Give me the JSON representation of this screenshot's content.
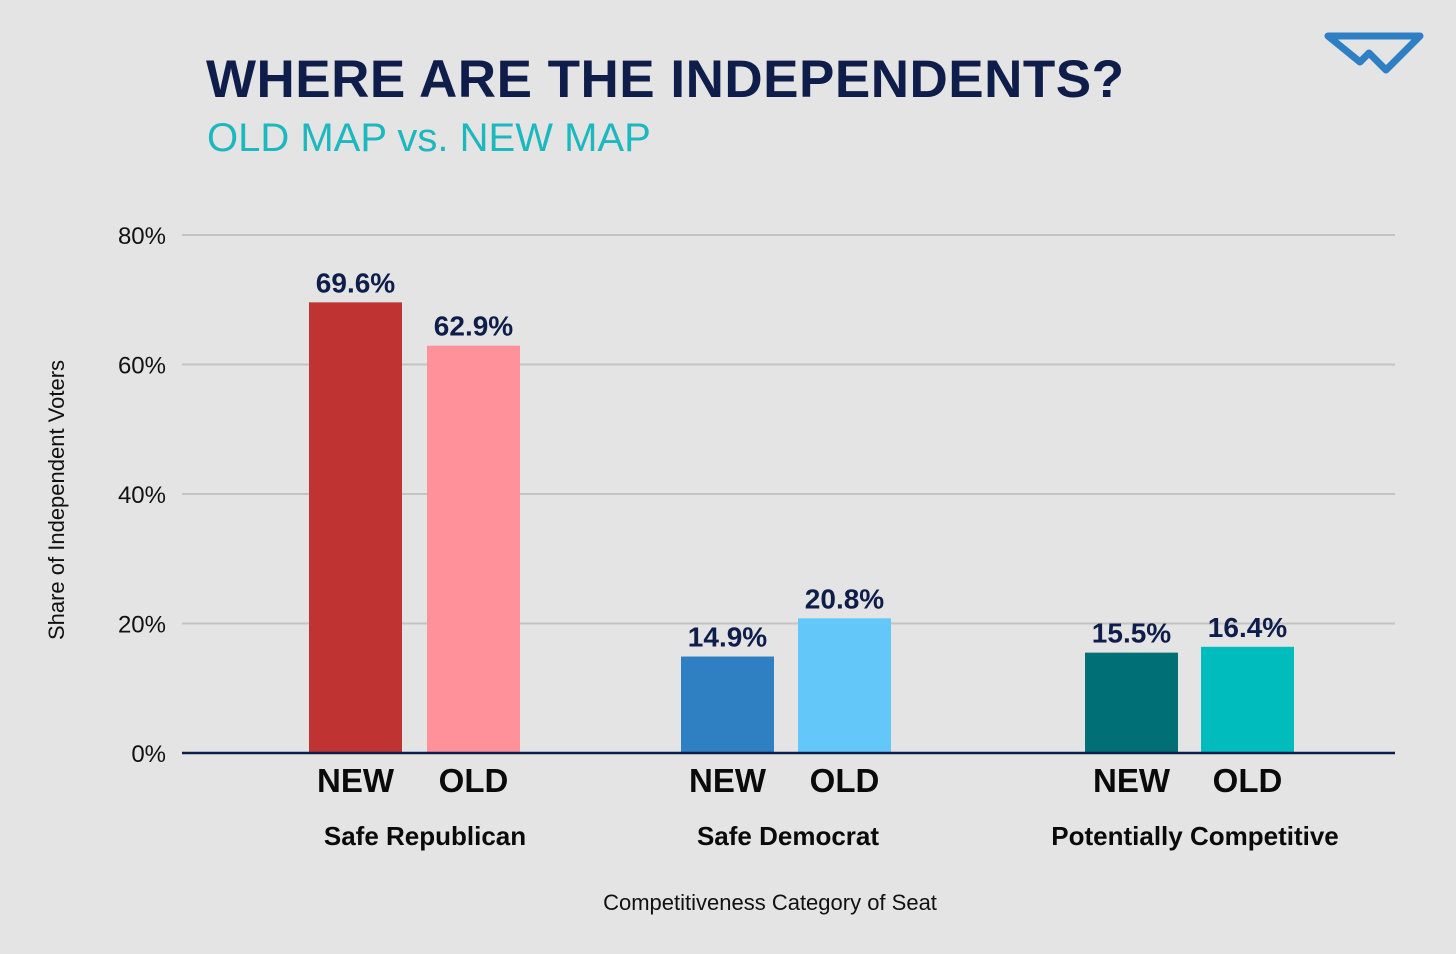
{
  "header": {
    "title": "WHERE ARE THE INDEPENDENTS?",
    "subtitle": "OLD MAP vs. NEW MAP",
    "logo": "brand-logo-icon"
  },
  "colors": {
    "background": "#e4e4e4",
    "title": "#0f1d4a",
    "subtitle": "#1cb8be",
    "gridline": "#c3c3c3",
    "baseline": "#0f1d4a",
    "logo": "#2e7fc4"
  },
  "chart_data": {
    "type": "bar",
    "title": "WHERE ARE THE INDEPENDENTS?",
    "subtitle": "OLD MAP vs. NEW MAP",
    "xlabel": "Competitiveness Category of Seat",
    "ylabel": "Share of Independent Voters",
    "ylim": [
      0,
      80
    ],
    "yticks": [
      0,
      20,
      40,
      60,
      80
    ],
    "ytick_labels": [
      "0%",
      "20%",
      "40%",
      "60%",
      "80%"
    ],
    "grid": true,
    "legend": "none",
    "categories": [
      "Safe Republican",
      "Safe Democrat",
      "Potentially Competitive"
    ],
    "groups": [
      {
        "category": "Safe Republican",
        "bars": [
          {
            "label": "NEW",
            "value": 69.6,
            "display": "69.6%",
            "color": "#c03333"
          },
          {
            "label": "OLD",
            "value": 62.9,
            "display": "62.9%",
            "color": "#fe9199"
          }
        ]
      },
      {
        "category": "Safe Democrat",
        "bars": [
          {
            "label": "NEW",
            "value": 14.9,
            "display": "14.9%",
            "color": "#2e80c2"
          },
          {
            "label": "OLD",
            "value": 20.8,
            "display": "20.8%",
            "color": "#64c7fa"
          }
        ]
      },
      {
        "category": "Potentially Competitive",
        "bars": [
          {
            "label": "NEW",
            "value": 15.5,
            "display": "15.5%",
            "color": "#016f76"
          },
          {
            "label": "OLD",
            "value": 16.4,
            "display": "16.4%",
            "color": "#01bcbd"
          }
        ]
      }
    ]
  }
}
